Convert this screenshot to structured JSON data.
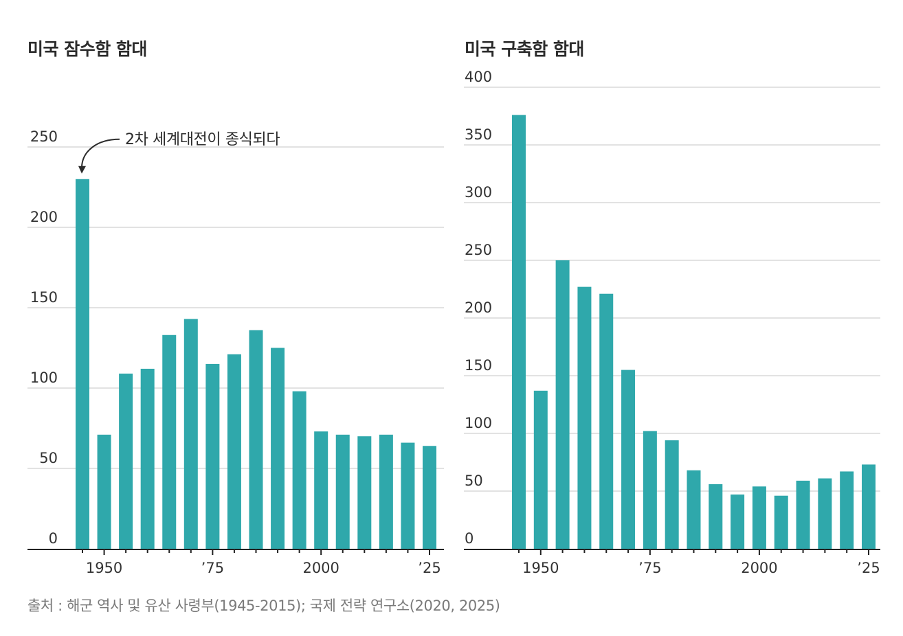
{
  "source": "출처 : 해군 역사 및 유산 사령부(1945-2015); 국제 전략 연구소(2020, 2025)",
  "colors": {
    "bar": "#2fa8ab",
    "grid": "#e2e2e2",
    "axis": "#222222",
    "text": "#333333"
  },
  "chart_data": [
    {
      "type": "bar",
      "title": "미국 잠수함 함대",
      "xlabel": "",
      "ylabel": "",
      "x": [
        1945,
        1950,
        1955,
        1960,
        1965,
        1970,
        1975,
        1980,
        1985,
        1990,
        1995,
        2000,
        2005,
        2010,
        2015,
        2020,
        2025
      ],
      "values": [
        230,
        71,
        109,
        112,
        133,
        143,
        115,
        121,
        136,
        125,
        98,
        73,
        71,
        70,
        71,
        66,
        64
      ],
      "ylim": [
        0,
        250
      ],
      "yticks": [
        0,
        50,
        100,
        150,
        200,
        250
      ],
      "ytick_labels": [
        "0",
        "50",
        "100",
        "150",
        "200",
        "250"
      ],
      "xticks_major": [
        1950,
        1975,
        2000,
        2025
      ],
      "xtick_labels": [
        "1950",
        "’75",
        "2000",
        "’25"
      ],
      "grid": true,
      "annotation": {
        "text": "2차 세계대전이 종식되다",
        "x": 1945,
        "y": 230
      }
    },
    {
      "type": "bar",
      "title": "미국 구축함 함대",
      "xlabel": "",
      "ylabel": "",
      "x": [
        1945,
        1950,
        1955,
        1960,
        1965,
        1970,
        1975,
        1980,
        1985,
        1990,
        1995,
        2000,
        2005,
        2010,
        2015,
        2020,
        2025
      ],
      "values": [
        376,
        137,
        250,
        227,
        221,
        155,
        102,
        94,
        68,
        56,
        47,
        54,
        46,
        59,
        61,
        67,
        73
      ],
      "ylim": [
        0,
        400
      ],
      "yticks": [
        0,
        50,
        100,
        150,
        200,
        250,
        300,
        350,
        400
      ],
      "ytick_labels": [
        "0",
        "50",
        "100",
        "150",
        "200",
        "250",
        "300",
        "350",
        "400"
      ],
      "xticks_major": [
        1950,
        1975,
        2000,
        2025
      ],
      "xtick_labels": [
        "1950",
        "’75",
        "2000",
        "’25"
      ],
      "grid": true
    }
  ]
}
